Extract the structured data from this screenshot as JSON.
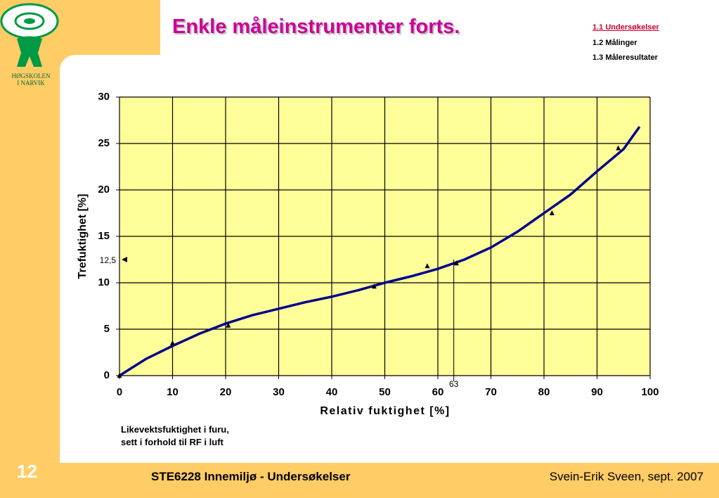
{
  "slide": {
    "title": "Enkle måleinstrumenter forts.",
    "menu": [
      "1.1 Undersøkelser",
      "1.2 Målinger",
      "1.3 Måleresultater"
    ],
    "logo_lines": [
      "HØGSKOLEN",
      "I NARVIK"
    ],
    "caption": [
      "Likevektsfuktighet i furu,",
      "sett i forhold til RF i luft"
    ],
    "number": "12",
    "footer_left": "STE6228 Innemiljø - Undersøkelser",
    "footer_right": "Svein-Erik Sveen, sept. 2007"
  },
  "chart_data": {
    "type": "line",
    "x_label": "Relativ fuktighet [%]",
    "y_label": "Trefuktighet [%]",
    "x": [
      0,
      5,
      10,
      15,
      20,
      25,
      30,
      35,
      40,
      45,
      50,
      55,
      60,
      65,
      70,
      75,
      80,
      85,
      90,
      95,
      98
    ],
    "series": [
      {
        "color": "#00008b",
        "values": [
          0,
          1.8,
          3.2,
          4.5,
          5.6,
          6.5,
          7.2,
          7.9,
          8.5,
          9.2,
          10,
          10.7,
          11.5,
          12.5,
          13.8,
          15.5,
          17.5,
          19.5,
          22,
          24.4,
          26.8
        ]
      }
    ],
    "points": {
      "color": "#000000",
      "x": [
        0,
        10,
        20.5,
        48,
        58,
        63.5,
        81.5,
        94
      ],
      "y": [
        0,
        3.5,
        5.4,
        9.6,
        11.8,
        12.1,
        17.5,
        24.5
      ]
    },
    "y_marker": {
      "value": 12.5,
      "label": "12,5"
    },
    "x_marker": 63,
    "xlim": [
      0,
      100
    ],
    "xticks": [
      0,
      10,
      20,
      30,
      40,
      50,
      60,
      70,
      80,
      90,
      100
    ],
    "ylim": [
      0,
      30
    ],
    "yticks": [
      0,
      5,
      10,
      15,
      20,
      25,
      30
    ],
    "grid": true,
    "plot_background": "#ffff99"
  }
}
